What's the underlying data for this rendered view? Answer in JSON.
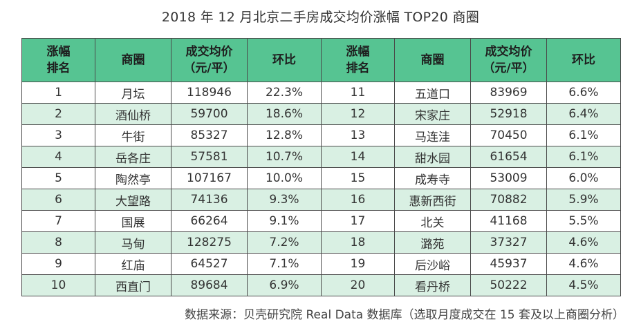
{
  "title": "2018 年 12 月北京二手房成交均价涨幅 TOP20 商圈",
  "headers": {
    "rank_l1": "涨幅",
    "rank_l2": "排名",
    "area": "商圈",
    "price_l1": "成交均价",
    "price_l2": "（元/平）",
    "mom": "环比"
  },
  "rows": [
    {
      "rank": "1",
      "area": "月坛",
      "price": "118946",
      "mom": "22.3%",
      "rank2": "11",
      "area2": "五道口",
      "price2": "83969",
      "mom2": "6.6%"
    },
    {
      "rank": "2",
      "area": "酒仙桥",
      "price": "59700",
      "mom": "18.6%",
      "rank2": "12",
      "area2": "宋家庄",
      "price2": "52918",
      "mom2": "6.4%"
    },
    {
      "rank": "3",
      "area": "牛街",
      "price": "85327",
      "mom": "12.8%",
      "rank2": "13",
      "area2": "马连洼",
      "price2": "70450",
      "mom2": "6.1%"
    },
    {
      "rank": "4",
      "area": "岳各庄",
      "price": "57581",
      "mom": "10.7%",
      "rank2": "14",
      "area2": "甜水园",
      "price2": "61654",
      "mom2": "6.1%"
    },
    {
      "rank": "5",
      "area": "陶然亭",
      "price": "107167",
      "mom": "10.0%",
      "rank2": "15",
      "area2": "成寿寺",
      "price2": "53009",
      "mom2": "6.0%"
    },
    {
      "rank": "6",
      "area": "大望路",
      "price": "74136",
      "mom": "9.3%",
      "rank2": "16",
      "area2": "惠新西街",
      "price2": "70882",
      "mom2": "5.9%"
    },
    {
      "rank": "7",
      "area": "国展",
      "price": "66264",
      "mom": "9.1%",
      "rank2": "17",
      "area2": "北关",
      "price2": "41168",
      "mom2": "5.5%"
    },
    {
      "rank": "8",
      "area": "马甸",
      "price": "128275",
      "mom": "7.2%",
      "rank2": "18",
      "area2": "潞苑",
      "price2": "37327",
      "mom2": "4.6%"
    },
    {
      "rank": "9",
      "area": "红庙",
      "price": "64527",
      "mom": "7.1%",
      "rank2": "19",
      "area2": "后沙峪",
      "price2": "45937",
      "mom2": "4.6%"
    },
    {
      "rank": "10",
      "area": "西直门",
      "price": "89684",
      "mom": "6.9%",
      "rank2": "20",
      "area2": "看丹桥",
      "price2": "50222",
      "mom2": "4.5%"
    }
  ],
  "source": "数据来源：贝壳研究院 Real Data 数据库（选取月度成交在 15 套及以上商圈分析）"
}
